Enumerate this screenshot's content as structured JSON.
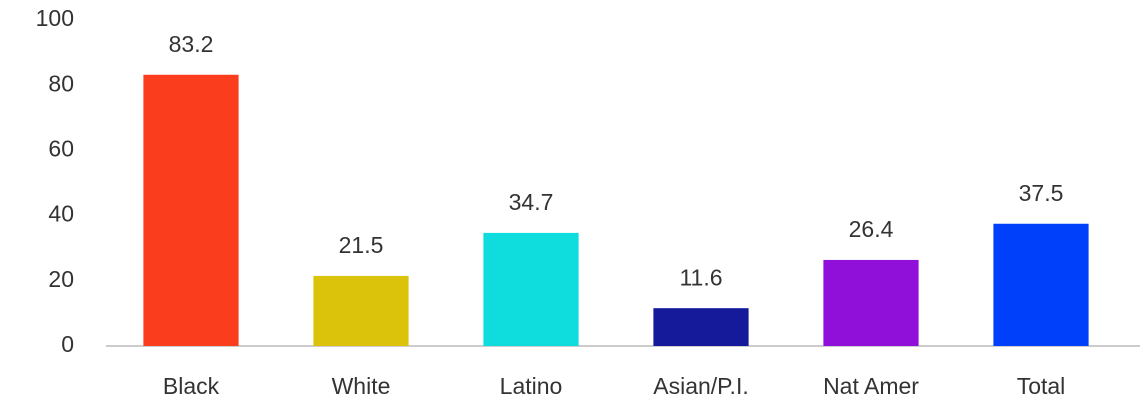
{
  "chart_data": {
    "type": "bar",
    "categories": [
      "Black",
      "White",
      "Latino",
      "Asian/P.I.",
      "Nat Amer",
      "Total"
    ],
    "values": [
      83.2,
      21.5,
      34.7,
      11.6,
      26.4,
      37.5
    ],
    "colors": [
      "#f93d1d",
      "#dbc30c",
      "#0fdcdc",
      "#141a9a",
      "#9010d9",
      "#0040fb"
    ],
    "ylim": [
      0,
      100
    ],
    "yticks": [
      0,
      20,
      40,
      60,
      80,
      100
    ],
    "grid": false
  }
}
